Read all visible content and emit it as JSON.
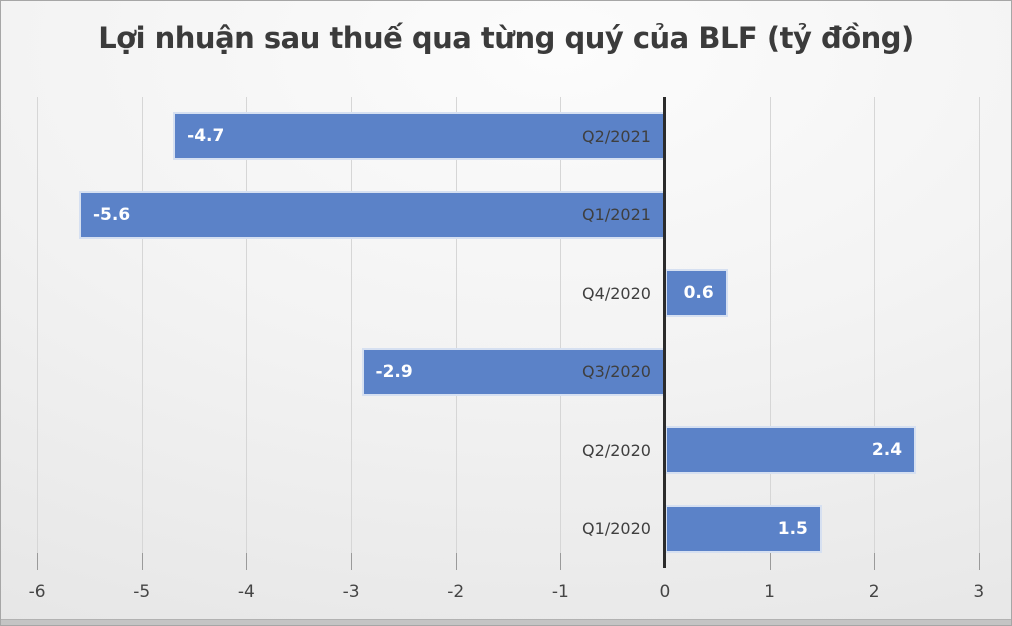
{
  "chart_data": {
    "type": "bar",
    "orientation": "horizontal",
    "title": "Lợi nhuận sau thuế qua từng quý của BLF (tỷ đồng)",
    "categories": [
      "Q2/2021",
      "Q1/2021",
      "Q4/2020",
      "Q3/2020",
      "Q2/2020",
      "Q1/2020"
    ],
    "values": [
      -4.7,
      -5.6,
      0.6,
      -2.9,
      2.4,
      1.5
    ],
    "data_labels": [
      "-4.7",
      "-5.6",
      "0.6",
      "-2.9",
      "2.4",
      "1.5"
    ],
    "x_ticks": [
      -6,
      -5,
      -4,
      -3,
      -2,
      -1,
      0,
      1,
      2,
      3
    ],
    "x_tick_labels": [
      "-6",
      "-5",
      "-4",
      "-3",
      "-2",
      "-1",
      "0",
      "1",
      "2",
      "3"
    ],
    "xlim": [
      -6.25,
      3.25
    ],
    "grid": true,
    "legend": "none",
    "colors": {
      "bar": "#5B82C8",
      "bar_border": "rgba(255,255,255,0.75)",
      "zero_axis_line": "#2B2B2B",
      "gridline": "#D6D6D6",
      "tick_mark": "#9A9A9A",
      "title_text": "#3B3B3B",
      "category_text": "#3F3F3F",
      "value_text": "#FFFFFF",
      "tick_text": "#454545"
    }
  }
}
